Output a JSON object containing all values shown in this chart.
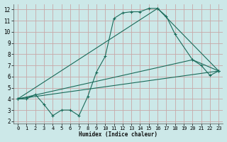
{
  "xlabel": "Humidex (Indice chaleur)",
  "bg_color": "#cce8e8",
  "grid_color": "#c8a8a8",
  "line_color": "#1a6b5a",
  "xlim": [
    -0.5,
    23.5
  ],
  "ylim": [
    1.8,
    12.5
  ],
  "xticks": [
    0,
    1,
    2,
    3,
    4,
    5,
    6,
    7,
    8,
    9,
    10,
    11,
    12,
    13,
    14,
    15,
    16,
    17,
    18,
    19,
    20,
    21,
    22,
    23
  ],
  "yticks": [
    2,
    3,
    4,
    5,
    6,
    7,
    8,
    9,
    10,
    11,
    12
  ],
  "line1_x": [
    0,
    1,
    2,
    3,
    4,
    5,
    6,
    7,
    8,
    9,
    10,
    11,
    12,
    13,
    14,
    15,
    16,
    17,
    18,
    20,
    21,
    22,
    23
  ],
  "line1_y": [
    4.0,
    4.0,
    4.4,
    3.5,
    2.5,
    3.0,
    3.0,
    2.5,
    4.2,
    6.4,
    7.8,
    11.2,
    11.7,
    11.8,
    11.8,
    12.1,
    12.1,
    11.4,
    9.8,
    7.5,
    7.0,
    6.1,
    6.5
  ],
  "line2_x": [
    0,
    16,
    23
  ],
  "line2_y": [
    4.0,
    12.1,
    6.5
  ],
  "line3_x": [
    0,
    23
  ],
  "line3_y": [
    4.0,
    6.5
  ],
  "line4_x": [
    0,
    20,
    23
  ],
  "line4_y": [
    4.0,
    7.5,
    6.5
  ],
  "marker_x1": [
    2,
    10,
    11,
    12,
    13,
    14,
    15,
    16,
    17,
    18
  ],
  "marker_y1": [
    4.4,
    7.8,
    11.2,
    11.7,
    11.8,
    11.8,
    12.1,
    12.1,
    11.4,
    9.8
  ]
}
